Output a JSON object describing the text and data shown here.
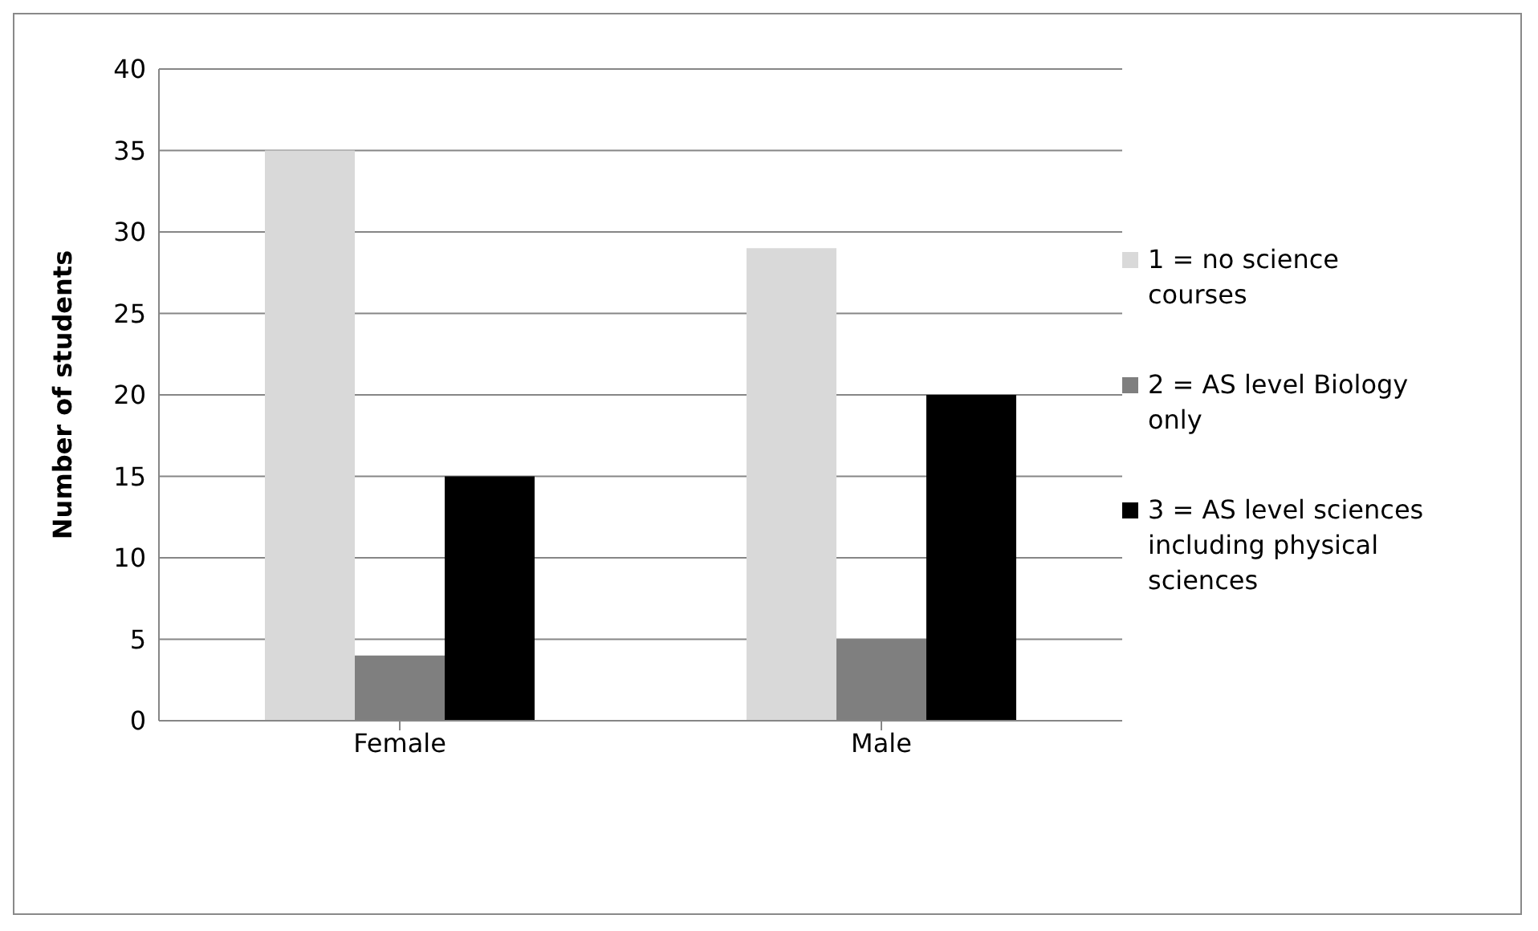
{
  "chart_data": {
    "type": "bar",
    "ylabel": "Number of students",
    "categories": [
      "Female",
      "Male"
    ],
    "series": [
      {
        "name": "1 = no science courses",
        "color": "#d9d9d9",
        "values": [
          35,
          29
        ]
      },
      {
        "name": "2 = AS level Biology only",
        "color": "#7f7f7f",
        "values": [
          4,
          5
        ]
      },
      {
        "name": "3 = AS level sciences including physical sciences",
        "color": "#000000",
        "values": [
          15,
          20
        ]
      }
    ],
    "ylim": [
      0,
      40
    ],
    "yticks": [
      0,
      5,
      10,
      15,
      20,
      25,
      30,
      35,
      40
    ],
    "grid": "y",
    "legend": "right"
  }
}
